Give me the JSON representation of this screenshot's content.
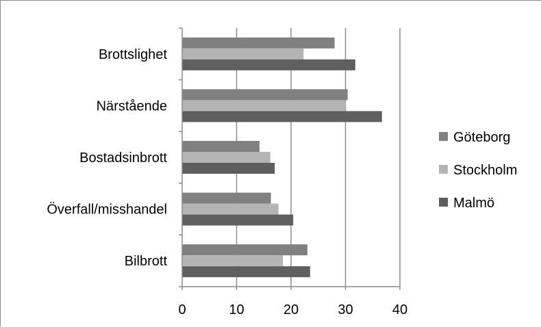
{
  "chart_data": {
    "type": "bar",
    "orientation": "horizontal",
    "categories": [
      "Brottslighet",
      "Närstående",
      "Bostadsinbrott",
      "Överfall/misshandel",
      "Bilbrott"
    ],
    "series": [
      {
        "name": "Göteborg",
        "values": [
          28.0,
          30.4,
          14.2,
          16.3,
          23.0
        ],
        "color": "#808080"
      },
      {
        "name": "Stockholm",
        "values": [
          22.3,
          30.0,
          16.2,
          17.7,
          18.5
        ],
        "color": "#b4b4b4"
      },
      {
        "name": "Malmö",
        "values": [
          31.8,
          36.7,
          17.0,
          20.4,
          23.5
        ],
        "color": "#5f5f5f"
      }
    ],
    "xlim": [
      0,
      40
    ],
    "xticks": [
      0,
      10,
      20,
      30,
      40
    ],
    "grid": "vertical",
    "legend_position": "right"
  }
}
